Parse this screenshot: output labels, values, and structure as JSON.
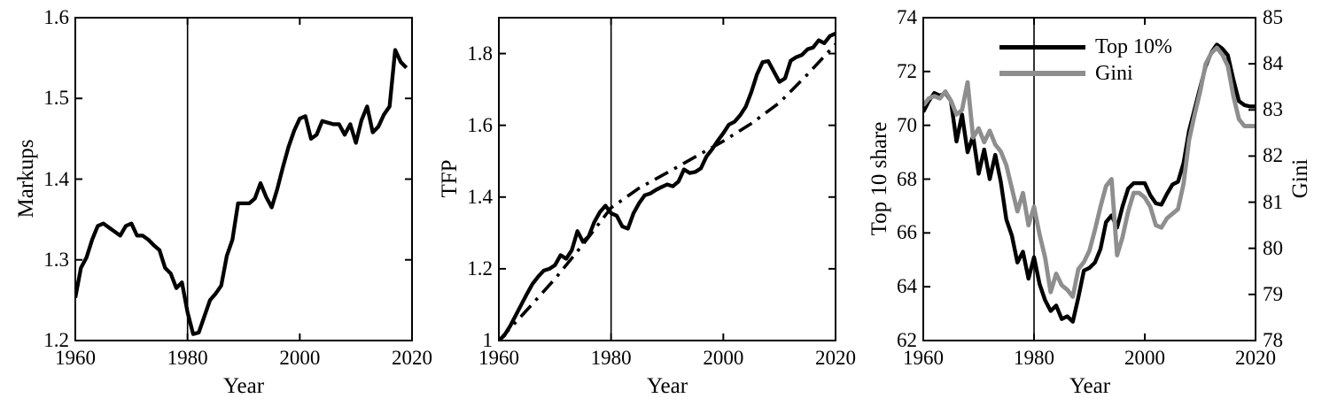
{
  "figure": {
    "description": "Three-panel black and white line figure: Markups, TFP, and inequality (Top 10 share / Gini) over 1960-2020 with a vertical reference line at 1980",
    "background": "#ffffff",
    "line_black": "#000000",
    "line_gray": "#8e8e8e"
  },
  "chart_data": [
    {
      "type": "line",
      "title": "",
      "xlabel": "Year",
      "ylabel": "Markups",
      "xlim": [
        1960,
        2020
      ],
      "ylim": [
        1.2,
        1.6
      ],
      "x_ticks": [
        "1960",
        "1980",
        "2000",
        "2020"
      ],
      "y_ticks": [
        "1.2",
        "1.3",
        "1.4",
        "1.5",
        "1.6"
      ],
      "vline_x": 1980,
      "grid": false,
      "series": [
        {
          "name": "Markups",
          "color": "#000000",
          "style": "solid",
          "line_width": 4.3,
          "x_start": 1960,
          "x_step": 1,
          "values": [
            1.253,
            1.29,
            1.303,
            1.325,
            1.342,
            1.345,
            1.34,
            1.335,
            1.33,
            1.342,
            1.345,
            1.33,
            1.33,
            1.325,
            1.318,
            1.312,
            1.29,
            1.283,
            1.265,
            1.272,
            1.235,
            1.208,
            1.21,
            1.23,
            1.25,
            1.258,
            1.268,
            1.305,
            1.325,
            1.37,
            1.37,
            1.37,
            1.376,
            1.395,
            1.378,
            1.365,
            1.388,
            1.415,
            1.44,
            1.46,
            1.475,
            1.478,
            1.45,
            1.455,
            1.472,
            1.47,
            1.468,
            1.468,
            1.455,
            1.468,
            1.445,
            1.473,
            1.49,
            1.458,
            1.465,
            1.48,
            1.49,
            1.56,
            1.545,
            1.538
          ]
        }
      ]
    },
    {
      "type": "line",
      "title": "",
      "xlabel": "Year",
      "ylabel": "TFP",
      "xlim": [
        1960,
        2020
      ],
      "ylim": [
        1.0,
        1.9
      ],
      "x_ticks": [
        "1960",
        "1980",
        "2000",
        "2020"
      ],
      "y_ticks": [
        "1",
        "1.2",
        "1.4",
        "1.6",
        "1.8"
      ],
      "vline_x": 1980,
      "grid": false,
      "series": [
        {
          "name": "TFP trend",
          "color": "#000000",
          "style": "dashdot",
          "line_width": 3.6,
          "x": [
            1960,
            1965,
            1970,
            1975,
            1980,
            1985,
            1990,
            1995,
            2000,
            2005,
            2010,
            2015,
            2020
          ],
          "values": [
            1.0,
            1.085,
            1.172,
            1.268,
            1.37,
            1.425,
            1.468,
            1.512,
            1.556,
            1.605,
            1.663,
            1.742,
            1.826
          ]
        },
        {
          "name": "TFP",
          "color": "#000000",
          "style": "solid",
          "line_width": 4.3,
          "x_start": 1960,
          "x_step": 1,
          "values": [
            1.0,
            1.015,
            1.04,
            1.07,
            1.1,
            1.13,
            1.158,
            1.178,
            1.195,
            1.2,
            1.21,
            1.238,
            1.228,
            1.252,
            1.305,
            1.275,
            1.29,
            1.33,
            1.358,
            1.376,
            1.355,
            1.348,
            1.318,
            1.312,
            1.355,
            1.383,
            1.405,
            1.41,
            1.42,
            1.428,
            1.435,
            1.43,
            1.443,
            1.477,
            1.467,
            1.47,
            1.48,
            1.513,
            1.533,
            1.557,
            1.578,
            1.602,
            1.61,
            1.628,
            1.652,
            1.693,
            1.742,
            1.776,
            1.779,
            1.75,
            1.721,
            1.731,
            1.78,
            1.79,
            1.796,
            1.812,
            1.817,
            1.837,
            1.829,
            1.849,
            1.856
          ]
        }
      ]
    },
    {
      "type": "line",
      "title": "",
      "xlabel": "Year",
      "ylabel": "Top 10 share",
      "ylabel_right": "Gini",
      "xlim": [
        1960,
        2020
      ],
      "ylim": [
        62,
        74
      ],
      "ylim_right": [
        78,
        85
      ],
      "x_ticks": [
        "1960",
        "1980",
        "2000",
        "2020"
      ],
      "y_ticks": [
        "62",
        "64",
        "66",
        "68",
        "70",
        "72",
        "74"
      ],
      "y_ticks_right": [
        "78",
        "79",
        "80",
        "81",
        "82",
        "83",
        "84",
        "85"
      ],
      "vline_x": 1980,
      "grid": false,
      "legend": [
        {
          "label": "Top 10%",
          "color": "#000000"
        },
        {
          "label": "Gini",
          "color": "#8e8e8e"
        }
      ],
      "legend_position": "top-center-inside",
      "series": [
        {
          "name": "Top 10%",
          "axis": "left",
          "color": "#000000",
          "style": "solid",
          "line_width": 4.4,
          "x_start": 1960,
          "x_step": 1,
          "values": [
            70.5,
            70.9,
            71.2,
            71.1,
            71.2,
            70.9,
            69.4,
            70.4,
            69.0,
            69.6,
            68.2,
            69.1,
            68.0,
            68.9,
            67.9,
            66.5,
            65.9,
            64.9,
            65.3,
            64.3,
            65.1,
            64.1,
            63.5,
            63.1,
            63.3,
            62.8,
            62.9,
            62.7,
            63.6,
            64.6,
            64.7,
            64.9,
            65.4,
            66.4,
            66.65,
            66.2,
            67.0,
            67.65,
            67.85,
            67.85,
            67.85,
            67.4,
            67.1,
            67.05,
            67.45,
            67.8,
            67.9,
            68.6,
            69.8,
            70.6,
            71.4,
            72.2,
            72.7,
            73.0,
            72.85,
            72.6,
            71.7,
            70.9,
            70.75,
            70.7,
            70.7
          ]
        },
        {
          "name": "Gini",
          "axis": "right",
          "color": "#8e8e8e",
          "style": "solid",
          "line_width": 4.8,
          "x_start": 1960,
          "x_step": 1,
          "values": [
            83.1,
            83.25,
            83.3,
            83.25,
            83.4,
            83.2,
            82.9,
            83.0,
            83.6,
            82.4,
            82.6,
            82.3,
            82.55,
            82.25,
            82.1,
            81.8,
            81.3,
            80.8,
            81.2,
            80.5,
            80.9,
            80.3,
            79.8,
            79.05,
            79.45,
            79.2,
            79.1,
            78.95,
            79.55,
            79.7,
            79.95,
            80.4,
            80.9,
            81.35,
            81.5,
            79.85,
            80.25,
            80.8,
            81.2,
            81.2,
            81.1,
            80.9,
            80.5,
            80.45,
            80.65,
            80.75,
            80.85,
            81.4,
            82.35,
            82.9,
            83.4,
            84.0,
            84.23,
            84.35,
            84.2,
            83.95,
            83.3,
            82.8,
            82.65,
            82.65,
            82.65
          ]
        }
      ]
    }
  ]
}
